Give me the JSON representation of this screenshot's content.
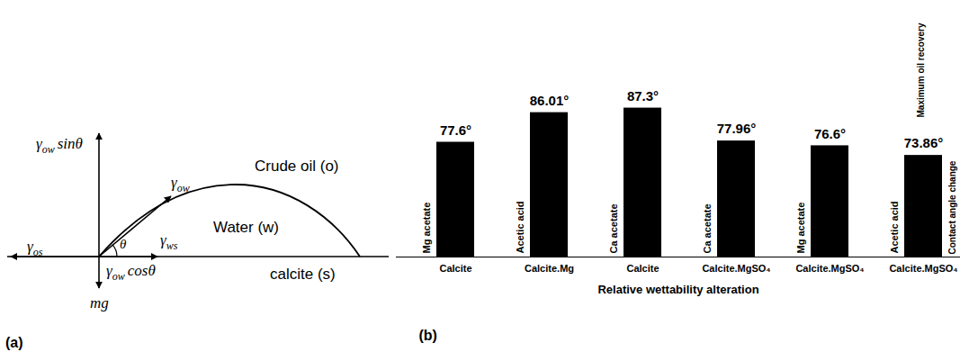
{
  "chart_data": {
    "type": "bar",
    "panel_label": "(b)",
    "x_label": "Relative wettability alteration",
    "categories": [
      "Calcite",
      "Calcite.Mg",
      "Calcite",
      "Calcite.MgSO₄",
      "Calcite.MgSO₄",
      "Calcite.MgSO₄"
    ],
    "bar_labels": [
      "Mg acetate",
      "Acetic acid",
      "Ca acetate",
      "Ca acetate",
      "Mg acetate",
      "Acetic acid"
    ],
    "values": [
      77.6,
      86.01,
      87.3,
      77.96,
      76.6,
      73.86
    ],
    "value_labels": [
      "77.6°",
      "86.01°",
      "87.3°",
      "77.96°",
      "76.6°",
      "73.86°"
    ],
    "data_labels": true,
    "color": "#000000",
    "ylim": [
      45,
      90
    ],
    "grid": false,
    "tick_labels": "x",
    "annotations": [
      "Maximum oil recovery",
      "Contact angle change"
    ]
  },
  "diagram": {
    "panel_label": "(a)",
    "phases": [
      "Crude oil (o)",
      "Water (w)",
      "calcite (s)"
    ],
    "forces": [
      {
        "symbol": "γ",
        "sub": "ow",
        "text": "sinθ"
      },
      {
        "symbol": "γ",
        "sub": "ow"
      },
      {
        "symbol": "γ",
        "sub": "ws"
      },
      {
        "symbol": "γ",
        "sub": "os"
      },
      {
        "symbol": "γ",
        "sub": "ow",
        "text": "cosθ"
      },
      {
        "text": "mg"
      }
    ],
    "angle": "θ"
  }
}
